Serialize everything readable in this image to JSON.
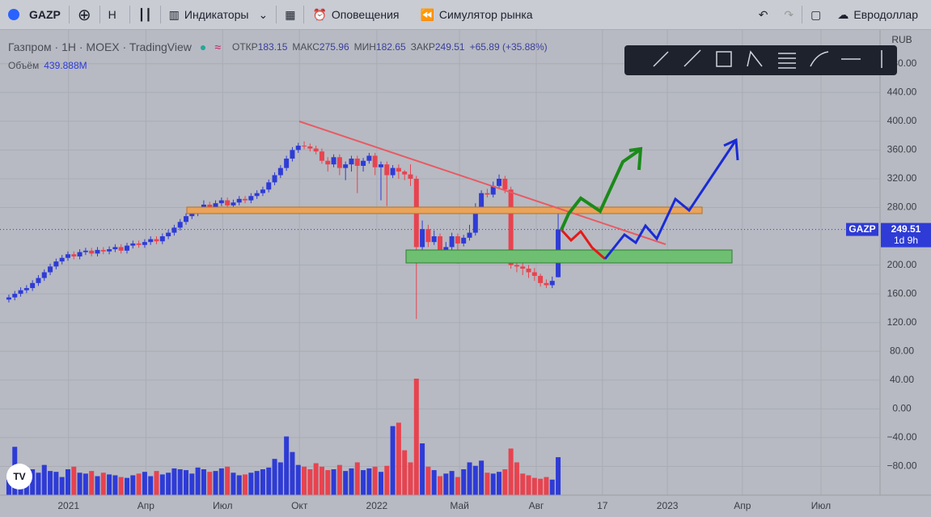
{
  "toolbar": {
    "symbol": "GAZP",
    "interval": "Н",
    "indicators": "Индикаторы",
    "alerts": "Оповещения",
    "replay": "Симулятор рынка",
    "layout": "Евродоллар"
  },
  "chart_data": {
    "type": "candlestick",
    "title": "Газпром · 1Н · MOEX · TradingView",
    "ohlc_labels": [
      "ОТКР",
      "МАКС",
      "МИН",
      "ЗАКР"
    ],
    "change_label": "+65.89 (+35.88%)",
    "volume_name": "Объём",
    "volume_label": "439.888M",
    "currency": "RUB",
    "price_tag": {
      "symbol": "GAZP",
      "countdown": "1d 9h"
    },
    "up_color": "#2e3bd6",
    "down_color": "#e8434f",
    "grid": true,
    "candles": [
      [
        152,
        159,
        148,
        155
      ],
      [
        155,
        164,
        151,
        160
      ],
      [
        160,
        169,
        156,
        165
      ],
      [
        165,
        172,
        161,
        168
      ],
      [
        168,
        179,
        164,
        175
      ],
      [
        175,
        186,
        171,
        182
      ],
      [
        182,
        194,
        178,
        190
      ],
      [
        190,
        202,
        186,
        198
      ],
      [
        198,
        209,
        194,
        205
      ],
      [
        205,
        214,
        201,
        210
      ],
      [
        210,
        219,
        206,
        215
      ],
      [
        215,
        219,
        208,
        212
      ],
      [
        212,
        222,
        208,
        218
      ],
      [
        218,
        224,
        214,
        220
      ],
      [
        220,
        224,
        212,
        216
      ],
      [
        216,
        225,
        212,
        221
      ],
      [
        221,
        225,
        215,
        219
      ],
      [
        219,
        226,
        215,
        222
      ],
      [
        222,
        229,
        218,
        225
      ],
      [
        225,
        229,
        216,
        220
      ],
      [
        220,
        231,
        216,
        227
      ],
      [
        227,
        234,
        223,
        230
      ],
      [
        230,
        234,
        224,
        228
      ],
      [
        228,
        236,
        224,
        232
      ],
      [
        232,
        240,
        228,
        236
      ],
      [
        236,
        240,
        229,
        233
      ],
      [
        233,
        244,
        229,
        240
      ],
      [
        240,
        249,
        236,
        245
      ],
      [
        245,
        256,
        241,
        252
      ],
      [
        252,
        264,
        248,
        260
      ],
      [
        260,
        272,
        256,
        268
      ],
      [
        268,
        276,
        264,
        272
      ],
      [
        272,
        279,
        268,
        275
      ],
      [
        275,
        290,
        271,
        284
      ],
      [
        284,
        288,
        276,
        280
      ],
      [
        280,
        290,
        276,
        286
      ],
      [
        286,
        294,
        282,
        290
      ],
      [
        290,
        294,
        279,
        283
      ],
      [
        283,
        291,
        279,
        287
      ],
      [
        287,
        296,
        283,
        292
      ],
      [
        292,
        296,
        286,
        290
      ],
      [
        290,
        300,
        286,
        296
      ],
      [
        296,
        304,
        292,
        300
      ],
      [
        300,
        309,
        296,
        305
      ],
      [
        305,
        319,
        301,
        315
      ],
      [
        315,
        329,
        311,
        325
      ],
      [
        325,
        339,
        321,
        335
      ],
      [
        335,
        352,
        331,
        348
      ],
      [
        348,
        364,
        344,
        360
      ],
      [
        360,
        370,
        356,
        366
      ],
      [
        366,
        372,
        361,
        365
      ],
      [
        365,
        369,
        358,
        362
      ],
      [
        362,
        366,
        354,
        358
      ],
      [
        358,
        362,
        341,
        345
      ],
      [
        345,
        350,
        330,
        340
      ],
      [
        340,
        354,
        336,
        350
      ],
      [
        350,
        354,
        325,
        335
      ],
      [
        335,
        344,
        318,
        340
      ],
      [
        340,
        352,
        330,
        348
      ],
      [
        348,
        352,
        300,
        338
      ],
      [
        338,
        349,
        330,
        345
      ],
      [
        345,
        356,
        341,
        352
      ],
      [
        352,
        356,
        325,
        336
      ],
      [
        336,
        344,
        290,
        340
      ],
      [
        340,
        344,
        282,
        325
      ],
      [
        325,
        339,
        321,
        335
      ],
      [
        335,
        340,
        320,
        330
      ],
      [
        330,
        332,
        318,
        326
      ],
      [
        326,
        340,
        310,
        320
      ],
      [
        320,
        324,
        125,
        225
      ],
      [
        225,
        262,
        220,
        250
      ],
      [
        250,
        256,
        225,
        232
      ],
      [
        232,
        248,
        228,
        240
      ],
      [
        240,
        244,
        212,
        220
      ],
      [
        220,
        232,
        210,
        225
      ],
      [
        225,
        245,
        215,
        240
      ],
      [
        240,
        244,
        202,
        230
      ],
      [
        230,
        242,
        226,
        238
      ],
      [
        238,
        256,
        234,
        245
      ],
      [
        245,
        286,
        241,
        280
      ],
      [
        280,
        304,
        276,
        300
      ],
      [
        300,
        306,
        294,
        298
      ],
      [
        298,
        316,
        294,
        310
      ],
      [
        310,
        326,
        306,
        320
      ],
      [
        320,
        324,
        300,
        305
      ],
      [
        305,
        309,
        195,
        200
      ],
      [
        200,
        208,
        190,
        198
      ],
      [
        198,
        204,
        186,
        195
      ],
      [
        195,
        200,
        182,
        190
      ],
      [
        190,
        196,
        178,
        185
      ],
      [
        185,
        188,
        170,
        175
      ],
      [
        175,
        180,
        168,
        172
      ],
      [
        172,
        184,
        168,
        178
      ],
      [
        183.15,
        275.96,
        182.65,
        249.51
      ]
    ],
    "volumes": [
      180,
      560,
      310,
      240,
      300,
      260,
      350,
      280,
      270,
      210,
      300,
      330,
      260,
      250,
      280,
      220,
      260,
      240,
      230,
      210,
      200,
      230,
      250,
      270,
      220,
      280,
      240,
      260,
      310,
      300,
      290,
      250,
      320,
      300,
      270,
      280,
      310,
      330,
      260,
      230,
      240,
      260,
      280,
      300,
      320,
      420,
      380,
      680,
      500,
      350,
      330,
      300,
      370,
      330,
      290,
      300,
      350,
      280,
      310,
      380,
      290,
      310,
      330,
      270,
      340,
      800,
      840,
      520,
      380,
      1350,
      600,
      330,
      290,
      220,
      250,
      280,
      210,
      300,
      380,
      340,
      400,
      260,
      250,
      270,
      300,
      540,
      380,
      250,
      230,
      200,
      190,
      210,
      180,
      439.888
    ],
    "volume_ylim": [
      0,
      2400
    ],
    "ylim": [
      -120,
      520
    ],
    "yticks": [
      {
        "value": 480,
        "label": "480.00"
      },
      {
        "value": 440,
        "label": "440.00"
      },
      {
        "value": 400,
        "label": "400.00"
      },
      {
        "value": 360,
        "label": "360.00"
      },
      {
        "value": 320,
        "label": "320.00"
      },
      {
        "value": 280,
        "label": "280.00"
      },
      {
        "value": 200,
        "label": "200.00"
      },
      {
        "value": 160,
        "label": "160.00"
      },
      {
        "value": 120,
        "label": "120.00"
      },
      {
        "value": 80,
        "label": "80.00"
      },
      {
        "value": 40,
        "label": "40.00"
      },
      {
        "value": 0,
        "label": "0.00"
      },
      {
        "value": -40,
        "label": "−40.00"
      },
      {
        "value": -80,
        "label": "−80.00"
      }
    ],
    "xlim": [
      -1.5,
      147.5
    ],
    "xticks": [
      {
        "value": 10.1,
        "label": "2021"
      },
      {
        "value": 23.2,
        "label": "Апр"
      },
      {
        "value": 36.2,
        "label": "Июл"
      },
      {
        "value": 49.2,
        "label": "Окт"
      },
      {
        "value": 62.3,
        "label": "2022"
      },
      {
        "value": 76.3,
        "label": "Май"
      },
      {
        "value": 89.3,
        "label": "Авг"
      },
      {
        "value": 100.5,
        "label": "17"
      },
      {
        "value": 111.5,
        "label": "2023"
      },
      {
        "value": 124.2,
        "label": "Апр"
      },
      {
        "value": 137.5,
        "label": "Июл"
      }
    ]
  }
}
